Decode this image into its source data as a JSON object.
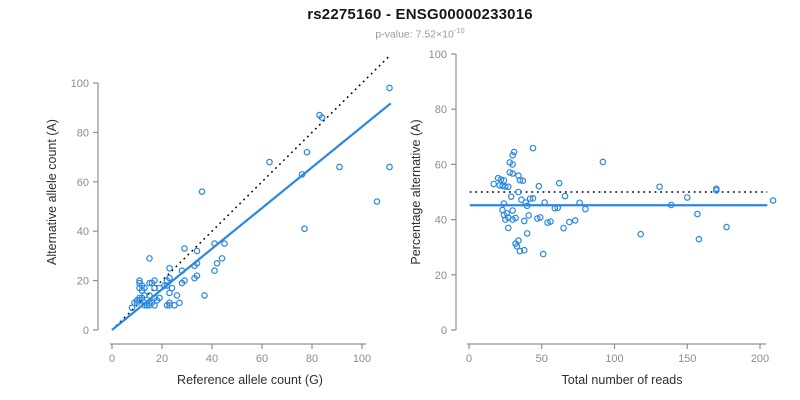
{
  "header": {
    "title": "rs2275160 - ENSG00000233016",
    "subtitle_prefix": "p-value: 7.52×10",
    "subtitle_exponent": "-10"
  },
  "colors": {
    "point": "#2b87e0",
    "fit": "#2b87e0",
    "identity": "#000000",
    "axis": "#909090"
  },
  "chart_data": [
    {
      "type": "scatter",
      "panel": "left",
      "xlabel": "Reference allele count (G)",
      "ylabel": "Alternative allele count (A)",
      "xlim": [
        0,
        112
      ],
      "ylim": [
        0,
        112
      ],
      "xticks": [
        0,
        20,
        40,
        60,
        80,
        100
      ],
      "yticks": [
        0,
        20,
        40,
        60,
        80,
        100
      ],
      "grid": false,
      "points": [
        [
          111,
          98
        ],
        [
          83,
          87
        ],
        [
          84,
          86
        ],
        [
          78,
          72
        ],
        [
          63,
          68
        ],
        [
          91,
          66
        ],
        [
          111,
          66
        ],
        [
          76,
          63
        ],
        [
          36,
          56
        ],
        [
          106,
          52
        ],
        [
          77,
          41
        ],
        [
          45,
          35
        ],
        [
          41,
          35
        ],
        [
          44,
          29
        ],
        [
          42,
          27
        ],
        [
          34,
          27
        ],
        [
          33,
          26
        ],
        [
          41,
          24
        ],
        [
          29,
          33
        ],
        [
          34,
          32
        ],
        [
          28,
          24
        ],
        [
          23,
          25
        ],
        [
          34,
          22
        ],
        [
          33,
          21
        ],
        [
          37,
          14
        ],
        [
          26,
          14
        ],
        [
          24,
          17
        ],
        [
          22,
          20
        ],
        [
          23,
          21
        ],
        [
          22,
          18
        ],
        [
          28,
          19
        ],
        [
          29,
          20
        ],
        [
          23,
          15
        ],
        [
          19,
          17
        ],
        [
          21,
          18
        ],
        [
          17,
          20
        ],
        [
          16,
          19
        ],
        [
          17,
          17
        ],
        [
          15,
          29
        ],
        [
          13,
          17
        ],
        [
          12,
          16
        ],
        [
          11,
          20
        ],
        [
          11,
          19
        ],
        [
          11,
          17
        ],
        [
          15,
          19
        ],
        [
          12,
          18
        ],
        [
          19,
          13
        ],
        [
          17,
          13
        ],
        [
          15,
          14
        ],
        [
          13,
          14
        ],
        [
          11,
          13
        ],
        [
          10,
          12
        ],
        [
          9,
          11
        ],
        [
          10,
          11
        ],
        [
          11,
          12
        ],
        [
          12,
          13
        ],
        [
          13,
          11
        ],
        [
          15,
          11
        ],
        [
          18,
          12
        ],
        [
          16,
          11
        ],
        [
          15,
          10
        ],
        [
          14,
          10
        ],
        [
          13,
          10
        ],
        [
          17,
          10
        ],
        [
          22,
          10
        ],
        [
          23,
          11
        ],
        [
          23,
          10
        ],
        [
          25,
          10
        ],
        [
          27,
          11
        ],
        [
          8,
          9
        ]
      ],
      "lines": [
        {
          "name": "identity-line",
          "kind": "abline",
          "slope": 1,
          "intercept": 0,
          "x_range": [
            0,
            111
          ],
          "style": "dotted",
          "color": "identity"
        },
        {
          "name": "fit-line",
          "kind": "abline",
          "slope": 0.823,
          "intercept": 0,
          "x_range": [
            0,
            111.5
          ],
          "style": "solid",
          "color": "fit"
        }
      ]
    },
    {
      "type": "scatter",
      "panel": "right",
      "xlabel": "Total number of reads",
      "ylabel": "Percentage alternative (A)",
      "xlim": [
        0,
        210
      ],
      "ylim": [
        0,
        100
      ],
      "xticks": [
        0,
        50,
        100,
        150,
        200
      ],
      "yticks": [
        0,
        20,
        40,
        60,
        80,
        100
      ],
      "grid": false,
      "points": [
        [
          209,
          46.9
        ],
        [
          170,
          51.2
        ],
        [
          170,
          50.6
        ],
        [
          150,
          48.0
        ],
        [
          131,
          51.9
        ],
        [
          157,
          42.0
        ],
        [
          177,
          37.3
        ],
        [
          139,
          45.3
        ],
        [
          92,
          60.9
        ],
        [
          158,
          32.9
        ],
        [
          118,
          34.7
        ],
        [
          80,
          43.8
        ],
        [
          76,
          46.1
        ],
        [
          73,
          39.7
        ],
        [
          69,
          39.1
        ],
        [
          61,
          44.3
        ],
        [
          59,
          44.1
        ],
        [
          65,
          36.9
        ],
        [
          62,
          53.2
        ],
        [
          66,
          48.5
        ],
        [
          52,
          46.2
        ],
        [
          48,
          52.1
        ],
        [
          56,
          39.3
        ],
        [
          54,
          38.9
        ],
        [
          51,
          27.5
        ],
        [
          40,
          35.0
        ],
        [
          41,
          41.5
        ],
        [
          42,
          47.6
        ],
        [
          44,
          47.7
        ],
        [
          40,
          45.0
        ],
        [
          47,
          40.4
        ],
        [
          49,
          40.8
        ],
        [
          38,
          39.5
        ],
        [
          36,
          47.2
        ],
        [
          39,
          46.2
        ],
        [
          37,
          54.1
        ],
        [
          35,
          54.3
        ],
        [
          34,
          50.0
        ],
        [
          44,
          65.9
        ],
        [
          30,
          56.7
        ],
        [
          28,
          57.1
        ],
        [
          31,
          64.5
        ],
        [
          30,
          63.3
        ],
        [
          28,
          60.7
        ],
        [
          34,
          55.9
        ],
        [
          30,
          60.0
        ],
        [
          32,
          40.6
        ],
        [
          30,
          43.3
        ],
        [
          29,
          48.3
        ],
        [
          27,
          51.9
        ],
        [
          24,
          54.2
        ],
        [
          22,
          54.5
        ],
        [
          20,
          55.0
        ],
        [
          21,
          52.4
        ],
        [
          23,
          52.2
        ],
        [
          25,
          52.0
        ],
        [
          24,
          45.8
        ],
        [
          26,
          42.3
        ],
        [
          30,
          40.0
        ],
        [
          27,
          40.7
        ],
        [
          25,
          40.0
        ],
        [
          24,
          41.7
        ],
        [
          23,
          43.5
        ],
        [
          27,
          37.0
        ],
        [
          32,
          31.3
        ],
        [
          34,
          32.4
        ],
        [
          33,
          30.3
        ],
        [
          35,
          28.6
        ],
        [
          38,
          28.9
        ],
        [
          17,
          52.9
        ]
      ],
      "lines": [
        {
          "name": "null-line",
          "kind": "hline",
          "value": 50,
          "x_range": [
            0.5,
            205
          ],
          "style": "dotted",
          "color": "identity"
        },
        {
          "name": "fit-line",
          "kind": "hline",
          "value": 45.2,
          "x_range": [
            0.5,
            205
          ],
          "style": "solid",
          "color": "fit"
        }
      ]
    }
  ]
}
